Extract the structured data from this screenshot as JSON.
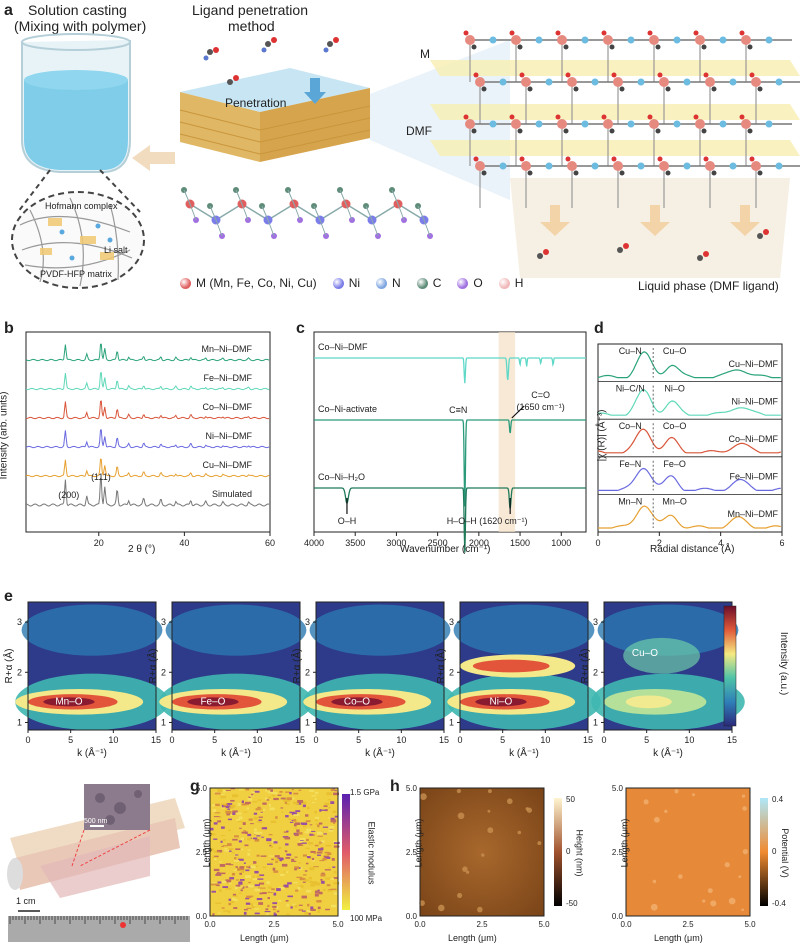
{
  "panel_a": {
    "label": "a",
    "solution_casting": "Solution casting",
    "solution_casting_sub": "(Mixing with polymer)",
    "ligand_method_l1": "Ligand penetration",
    "ligand_method_l2": "method",
    "penetration": "Penetration",
    "hofmann": "Hofmann complex",
    "li_salt": "Li salt",
    "pvdf": "PVDF-HFP matrix",
    "M": "M",
    "DMF": "DMF",
    "liquid_phase": "Liquid phase (DMF ligand)",
    "legend": [
      {
        "label": "M (Mn, Fe, Co, Ni, Cu)",
        "color": "#e06060"
      },
      {
        "label": "Ni",
        "color": "#7b7de8"
      },
      {
        "label": "N",
        "color": "#7fa6e0"
      },
      {
        "label": "C",
        "color": "#5e8c78"
      },
      {
        "label": "O",
        "color": "#a070e0"
      },
      {
        "label": "H",
        "color": "#f0b8b8"
      }
    ]
  },
  "panel_b": {
    "label": "b",
    "ylabel": "Intensity (arb. units)",
    "xlabel": "2 θ (°)",
    "xticks": [
      "20",
      "40",
      "60"
    ],
    "series": [
      {
        "name": "Mn–Ni–DMF",
        "color": "#2aa37a"
      },
      {
        "name": "Fe–Ni–DMF",
        "color": "#5fd8b8"
      },
      {
        "name": "Co–Ni–DMF",
        "color": "#d9553a"
      },
      {
        "name": "Ni–Ni–DMF",
        "color": "#6a6ae0"
      },
      {
        "name": "Cu–Ni–DMF",
        "color": "#e7a030"
      },
      {
        "name": "Simulated",
        "color": "#777777"
      }
    ],
    "peak_200": "(200)",
    "peak_111": "(111)"
  },
  "panel_c": {
    "label": "c",
    "xlabel": "Wavenumber (cm⁻¹)",
    "xticks": [
      "4000",
      "3500",
      "3000",
      "2500",
      "2000",
      "1500",
      "1000"
    ],
    "series": [
      {
        "name": "Co–Ni–DMF",
        "color": "#5fd8c8"
      },
      {
        "name": "Co–Ni-activate",
        "color": "#2a9a7a"
      },
      {
        "name": "Co–Ni–H₂O",
        "color": "#1f7a5a"
      }
    ],
    "cn": "C≡N",
    "co": "C=O",
    "co_wn": "(1650 cm⁻¹)",
    "oh": "O–H",
    "hoh": "H–O–H (1620 cm⁻¹)"
  },
  "panel_d": {
    "label": "d",
    "ylabel": "|χ (R)| (Å⁻³)",
    "xlabel": "Radial distance (Å)",
    "xticks": [
      "0",
      "2",
      "4",
      "6"
    ],
    "series": [
      {
        "name": "Cu–Ni–DMF",
        "color": "#2aa37a",
        "a": "Cu–N",
        "b": "Cu–O"
      },
      {
        "name": "Ni–Ni–DMF",
        "color": "#5fd8b8",
        "a": "Ni–C/N",
        "b": "Ni–O"
      },
      {
        "name": "Co–Ni–DMF",
        "color": "#d9553a",
        "a": "Co–N",
        "b": "Co–O"
      },
      {
        "name": "Fe–Ni–DMF",
        "color": "#6a6ae0",
        "a": "Fe–N",
        "b": "Fe–O"
      },
      {
        "name": "Mn–Ni–DMF",
        "color": "#e7a030",
        "a": "Mn–N",
        "b": "Mn–O"
      }
    ]
  },
  "panel_e": {
    "label": "e",
    "ylabel": "R+α (Å)",
    "xlabel": "k (Å⁻¹)",
    "xticks": [
      "0",
      "5",
      "10",
      "15"
    ],
    "yticks": [
      "1",
      "2",
      "3"
    ],
    "maps": [
      "Mn–O",
      "Fe–O",
      "Co–O",
      "Ni–O",
      "Cu–O"
    ],
    "colorbar_label": "Intensity (a.u.)"
  },
  "panel_f": {
    "label": "f",
    "scale_cm": "1 cm",
    "scale_nm": "500 nm"
  },
  "panel_g": {
    "label": "g",
    "xlabel": "Length (μm)",
    "ylabel": "Length (μm)",
    "ticks": [
      "0.0",
      "2.5",
      "5.0"
    ],
    "cb_top": "1.5 GPa",
    "cb_bottom": "100 MPa",
    "cb_label": "Elastic modulus"
  },
  "panel_h": {
    "label": "h",
    "xlabel": "Length (μm)",
    "ylabel": "Length (μm)",
    "ticks": [
      "0.0",
      "2.5",
      "5.0"
    ],
    "h_cb": [
      "50",
      "0",
      "-50"
    ],
    "h_cb_label": "Height (nm)",
    "p_cb": [
      "0.4",
      "0",
      "-0.4"
    ],
    "p_cb_label": "Potential (V)"
  }
}
